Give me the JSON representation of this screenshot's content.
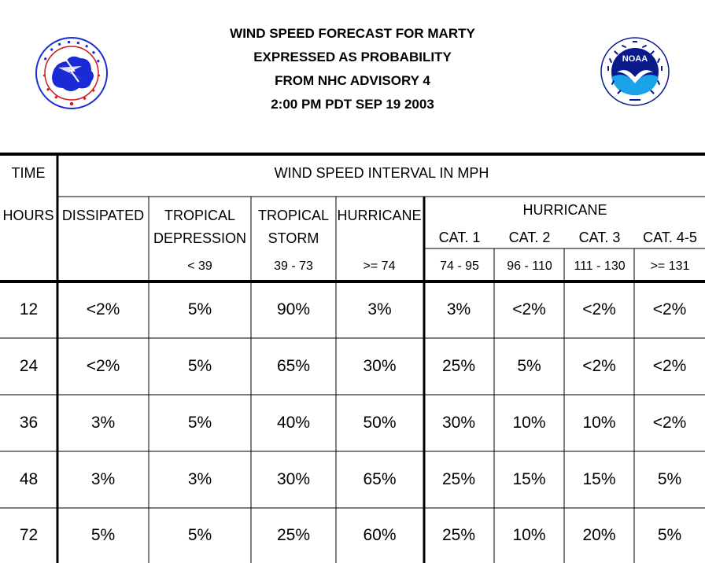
{
  "header": {
    "title_lines": [
      "WIND SPEED FORECAST FOR MARTY",
      "EXPRESSED AS PROBABILITY",
      "FROM NHC ADVISORY   4",
      "2:00 PM PDT SEP 19 2003"
    ],
    "logo_left_icon": "national-weather-service-logo",
    "logo_right_icon": "noaa-logo",
    "logo_right_text": "NOAA"
  },
  "table": {
    "col_time": "TIME",
    "col_hours": "HOURS",
    "span_header": "WIND SPEED INTERVAL IN MPH",
    "hurricane_group": "HURRICANE",
    "columns": [
      {
        "line1": "DISSIPATED",
        "line2": "",
        "range": ""
      },
      {
        "line1": "TROPICAL",
        "line2": "DEPRESSION",
        "range": "< 39"
      },
      {
        "line1": "TROPICAL",
        "line2": "STORM",
        "range": "39 - 73"
      },
      {
        "line1": "HURRICANE",
        "line2": "",
        "range": ">= 74"
      },
      {
        "line1": "CAT. 1",
        "line2": "",
        "range": "74 - 95"
      },
      {
        "line1": "CAT. 2",
        "line2": "",
        "range": "96 - 110"
      },
      {
        "line1": "CAT. 3",
        "line2": "",
        "range": "111 - 130"
      },
      {
        "line1": "CAT. 4-5",
        "line2": "",
        "range": ">= 131"
      }
    ],
    "rows": [
      {
        "hours": "12",
        "values": [
          "<2%",
          "5%",
          "90%",
          "3%",
          "3%",
          "<2%",
          "<2%",
          "<2%"
        ]
      },
      {
        "hours": "24",
        "values": [
          "<2%",
          "5%",
          "65%",
          "30%",
          "25%",
          "5%",
          "<2%",
          "<2%"
        ]
      },
      {
        "hours": "36",
        "values": [
          "3%",
          "5%",
          "40%",
          "50%",
          "30%",
          "10%",
          "10%",
          "<2%"
        ]
      },
      {
        "hours": "48",
        "values": [
          "3%",
          "3%",
          "30%",
          "65%",
          "25%",
          "15%",
          "15%",
          "5%"
        ]
      },
      {
        "hours": "72",
        "values": [
          "5%",
          "5%",
          "25%",
          "60%",
          "25%",
          "10%",
          "20%",
          "5%"
        ]
      }
    ]
  },
  "colors": {
    "nws_blue": "#1a2bd6",
    "nws_red": "#d01818",
    "noaa_blue": "#1aa3e8",
    "noaa_navy": "#0a1a8a"
  }
}
